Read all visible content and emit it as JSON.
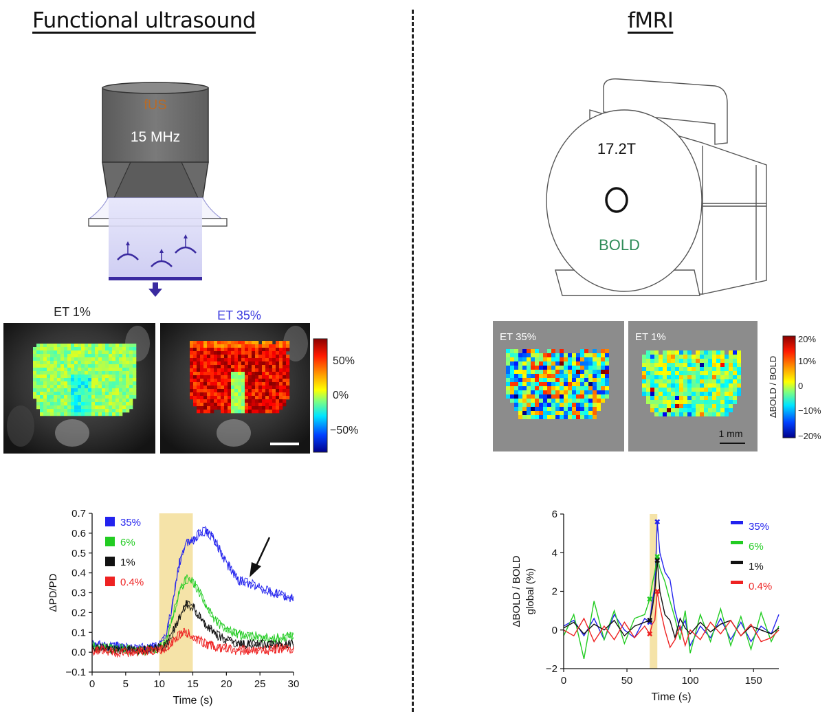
{
  "titles": {
    "left": "Functional ultrasound",
    "right": "fMRI"
  },
  "probe": {
    "name": "fUS",
    "frequency": "15 MHz"
  },
  "scanner": {
    "field": "17.2T",
    "label": "BOLD"
  },
  "fus_maps": {
    "labels": [
      "ET 1%",
      "ET 35%"
    ],
    "colorbar_ticks": [
      "50%",
      "0%",
      "−50%"
    ]
  },
  "fmri_maps": {
    "labels": [
      "ET 35%",
      "ET 1%"
    ],
    "scale_label": "1 mm",
    "colorbar_ticks": [
      "20%",
      "10%",
      "0",
      "−10%",
      "−20%"
    ],
    "colorbar_title": "ΔBOLD / BOLD"
  },
  "colors": {
    "blue": "#2222ee",
    "green": "#22cc22",
    "black": "#111111",
    "red": "#ee2222",
    "stim": "#f5e3a8",
    "map_gray": "#8c8c8c"
  },
  "chart_data": [
    {
      "type": "line",
      "title": "",
      "xlabel": "Time (s)",
      "ylabel": "ΔPD/PD",
      "xlim": [
        0,
        30
      ],
      "ylim": [
        -0.1,
        0.7
      ],
      "xticks": [
        "0",
        "5",
        "10",
        "15",
        "20",
        "25",
        "30"
      ],
      "yticks": [
        "−0.1",
        "0.0",
        "0.1",
        "0.2",
        "0.3",
        "0.4",
        "0.5",
        "0.6",
        "0.7"
      ],
      "stimulus": [
        10,
        15
      ],
      "x": [
        0,
        2,
        4,
        6,
        8,
        10,
        11,
        12,
        13,
        14,
        15,
        16,
        17,
        18,
        19,
        20,
        21,
        22,
        24,
        26,
        28,
        30
      ],
      "series": [
        {
          "name": "35%",
          "color": "blue",
          "values": [
            0.04,
            0.03,
            0.03,
            0.02,
            0.02,
            0.03,
            0.08,
            0.25,
            0.45,
            0.55,
            0.56,
            0.6,
            0.61,
            0.58,
            0.52,
            0.45,
            0.4,
            0.36,
            0.34,
            0.31,
            0.29,
            0.27
          ]
        },
        {
          "name": "6%",
          "color": "green",
          "values": [
            0.03,
            0.02,
            0.02,
            0.01,
            0.01,
            0.02,
            0.05,
            0.18,
            0.3,
            0.37,
            0.36,
            0.3,
            0.24,
            0.18,
            0.14,
            0.12,
            0.1,
            0.09,
            0.08,
            0.07,
            0.07,
            0.08
          ]
        },
        {
          "name": "1%",
          "color": "black",
          "values": [
            0.02,
            0.02,
            0.01,
            0.01,
            0.01,
            0.02,
            0.03,
            0.1,
            0.17,
            0.24,
            0.23,
            0.18,
            0.14,
            0.1,
            0.08,
            0.06,
            0.05,
            0.04,
            0.04,
            0.04,
            0.04,
            0.04
          ]
        },
        {
          "name": "0.4%",
          "color": "red",
          "values": [
            0.01,
            0.01,
            0.0,
            0.0,
            0.01,
            0.01,
            0.02,
            0.05,
            0.09,
            0.1,
            0.08,
            0.06,
            0.04,
            0.03,
            0.02,
            0.02,
            0.01,
            0.01,
            0.01,
            0.01,
            0.02,
            0.02
          ]
        }
      ]
    },
    {
      "type": "line",
      "title": "",
      "xlabel": "Time (s)",
      "ylabel": "ΔBOLD / BOLD",
      "ylabel2": "global (%)",
      "xlim": [
        0,
        170
      ],
      "ylim": [
        -2,
        6
      ],
      "xticks": [
        "0",
        "50",
        "100",
        "150"
      ],
      "yticks": [
        "−2",
        "0",
        "2",
        "4",
        "6"
      ],
      "stimulus": [
        68,
        74
      ],
      "x": [
        0,
        8,
        16,
        24,
        32,
        40,
        48,
        56,
        64,
        68,
        70,
        72,
        74,
        76,
        80,
        84,
        88,
        92,
        96,
        100,
        108,
        116,
        124,
        132,
        140,
        148,
        156,
        164,
        170
      ],
      "series": [
        {
          "name": "35%",
          "color": "blue",
          "values": [
            0.2,
            0.5,
            -0.3,
            0.6,
            -0.5,
            0.8,
            0.0,
            -0.4,
            0.6,
            0.4,
            1.5,
            2.2,
            5.6,
            4.0,
            3.0,
            2.6,
            1.0,
            0.0,
            0.5,
            -0.8,
            0.2,
            -0.4,
            0.6,
            -0.5,
            0.4,
            -0.6,
            0.2,
            -0.2,
            0.8
          ]
        },
        {
          "name": "6%",
          "color": "green",
          "values": [
            -0.3,
            0.8,
            -1.5,
            1.5,
            -0.5,
            1.0,
            -0.7,
            0.6,
            0.8,
            1.6,
            2.4,
            3.0,
            3.8,
            3.2,
            2.5,
            1.5,
            0.6,
            -0.5,
            1.0,
            -1.2,
            0.8,
            -0.6,
            1.1,
            -0.8,
            0.7,
            -1.0,
            0.9,
            -0.6,
            0.2
          ]
        },
        {
          "name": "1%",
          "color": "black",
          "values": [
            0.1,
            0.4,
            -0.2,
            0.3,
            0.0,
            0.5,
            -0.3,
            0.2,
            0.4,
            0.5,
            1.1,
            2.0,
            3.6,
            2.0,
            0.8,
            0.5,
            -0.4,
            0.6,
            0.1,
            -0.2,
            0.4,
            -0.1,
            0.3,
            0.5,
            -0.3,
            0.2,
            0.0,
            -0.2,
            0.1
          ]
        },
        {
          "name": "0.4%",
          "color": "red",
          "values": [
            0.0,
            -0.3,
            0.6,
            -0.6,
            0.2,
            -0.5,
            0.4,
            -0.4,
            0.2,
            -0.2,
            0.3,
            0.5,
            2.0,
            1.2,
            0.0,
            -0.9,
            -0.5,
            0.2,
            -0.8,
            0.0,
            -0.5,
            0.4,
            -0.2,
            0.5,
            -0.3,
            0.3,
            -0.6,
            -0.4,
            0.0
          ]
        }
      ]
    }
  ]
}
